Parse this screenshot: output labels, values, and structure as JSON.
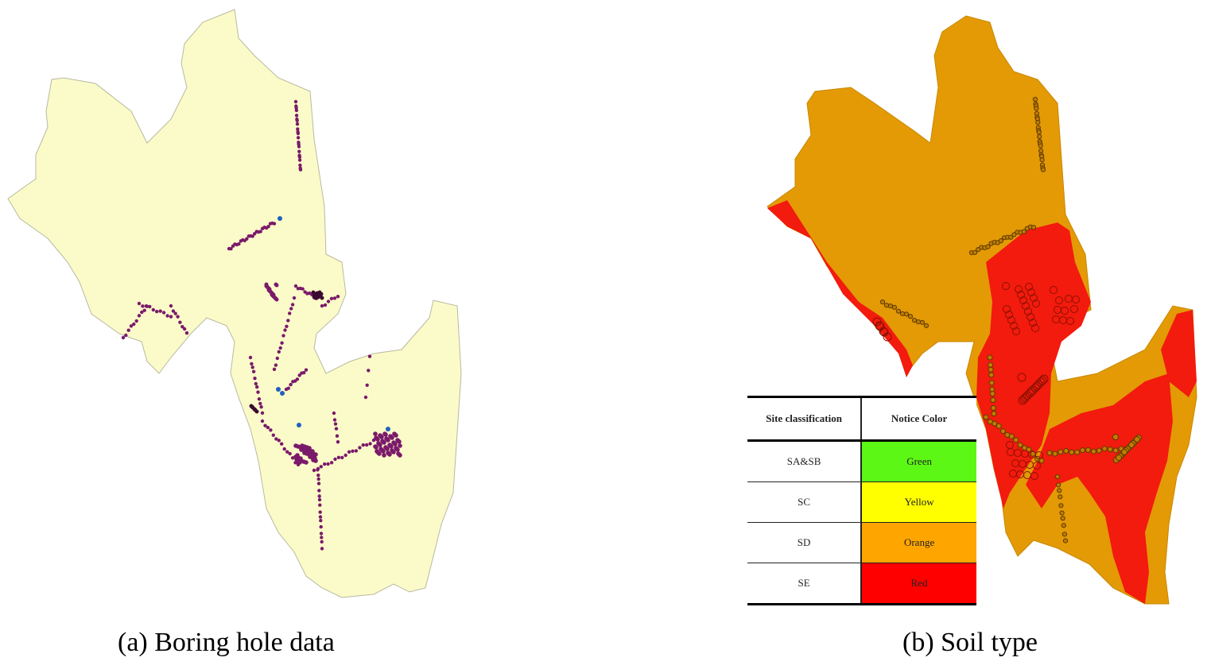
{
  "panels": {
    "a": {
      "caption": "(a) Boring hole data"
    },
    "b": {
      "caption": "(b) Soil type"
    }
  },
  "legend": {
    "headers": [
      "Site classification",
      "Notice Color"
    ],
    "rows": [
      {
        "class": "SA&SB",
        "color_name": "Green",
        "hex": "#5cf714"
      },
      {
        "class": "SC",
        "color_name": "Yellow",
        "hex": "#ffff00"
      },
      {
        "class": "SD",
        "color_name": "Orange",
        "hex": "#ffa500"
      },
      {
        "class": "SE",
        "color_name": "Red",
        "hex": "#ff0000"
      }
    ]
  },
  "colors": {
    "region_fill_a": "#fbfbc9",
    "boring_point": "#7a1a6a",
    "boring_point_alt": "#2060c0",
    "region_fill_b": "#e39a05",
    "soil_red": "#f31a0e"
  }
}
